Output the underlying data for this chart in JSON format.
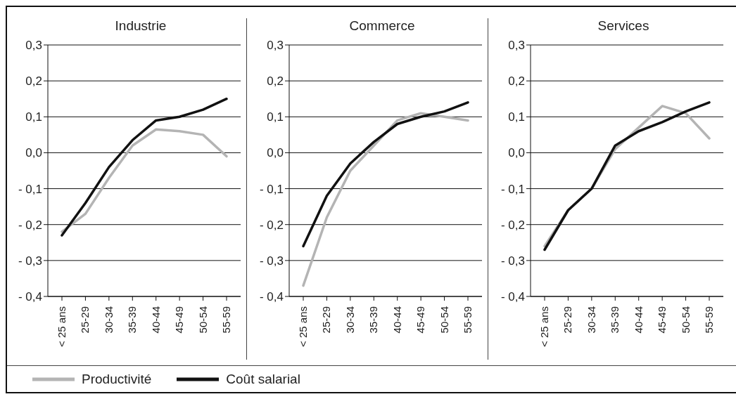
{
  "chart_data": [
    {
      "type": "line",
      "title": "Industrie",
      "categories": [
        "< 25 ans",
        "25-29",
        "30-34",
        "35-39",
        "40-44",
        "45-49",
        "50-54",
        "55-59"
      ],
      "ylim": [
        -0.4,
        0.3
      ],
      "yticks": [
        {
          "value": -0.4,
          "label": "- 0,4"
        },
        {
          "value": -0.3,
          "label": "- 0,3"
        },
        {
          "value": -0.2,
          "label": "- 0,2"
        },
        {
          "value": -0.1,
          "label": "- 0,1"
        },
        {
          "value": 0,
          "label": "0,0"
        },
        {
          "value": 0.1,
          "label": "0,1"
        },
        {
          "value": 0.2,
          "label": "0,2"
        },
        {
          "value": 0.3,
          "label": "0,3"
        }
      ],
      "grid": "y",
      "legend": "bottom",
      "series": [
        {
          "name": "Productivité",
          "color": "#b4b4b4",
          "values": [
            -0.22,
            -0.17,
            -0.07,
            0.02,
            0.065,
            0.06,
            0.05,
            -0.01
          ]
        },
        {
          "name": "Coût salarial",
          "color": "#111111",
          "values": [
            -0.23,
            -0.14,
            -0.04,
            0.035,
            0.09,
            0.1,
            0.12,
            0.15
          ]
        }
      ]
    },
    {
      "type": "line",
      "title": "Commerce",
      "categories": [
        "< 25 ans",
        "25-29",
        "30-34",
        "35-39",
        "40-44",
        "45-49",
        "50-54",
        "55-59"
      ],
      "ylim": [
        -0.4,
        0.3
      ],
      "yticks": [
        {
          "value": -0.4,
          "label": "- 0,4"
        },
        {
          "value": -0.3,
          "label": "- 0,3"
        },
        {
          "value": -0.2,
          "label": "- 0,2"
        },
        {
          "value": -0.1,
          "label": "- 0,1"
        },
        {
          "value": 0,
          "label": "0,0"
        },
        {
          "value": 0.1,
          "label": "0,1"
        },
        {
          "value": 0.2,
          "label": "0,2"
        },
        {
          "value": 0.3,
          "label": "0,3"
        }
      ],
      "grid": "y",
      "series": [
        {
          "color": "#b4b4b4",
          "values": [
            -0.37,
            -0.18,
            -0.05,
            0.02,
            0.09,
            0.11,
            0.1,
            0.09
          ]
        },
        {
          "color": "#111111",
          "values": [
            -0.26,
            -0.12,
            -0.03,
            0.03,
            0.08,
            0.1,
            0.115,
            0.14
          ]
        }
      ]
    },
    {
      "type": "line",
      "title": "Services",
      "categories": [
        "< 25 ans",
        "25-29",
        "30-34",
        "35-39",
        "40-44",
        "45-49",
        "50-54",
        "55-59"
      ],
      "ylim": [
        -0.4,
        0.3
      ],
      "yticks": [
        {
          "value": -0.4,
          "label": "- 0,4"
        },
        {
          "value": -0.3,
          "label": "- 0,3"
        },
        {
          "value": -0.2,
          "label": "- 0,2"
        },
        {
          "value": -0.1,
          "label": "- 0,1"
        },
        {
          "value": 0,
          "label": "0,0"
        },
        {
          "value": 0.1,
          "label": "0,1"
        },
        {
          "value": 0.2,
          "label": "0,2"
        },
        {
          "value": 0.3,
          "label": "0,3"
        }
      ],
      "grid": "y",
      "series": [
        {
          "color": "#b4b4b4",
          "values": [
            -0.26,
            -0.16,
            -0.1,
            0.01,
            0.07,
            0.13,
            0.11,
            0.04
          ]
        },
        {
          "color": "#111111",
          "values": [
            -0.27,
            -0.16,
            -0.1,
            0.02,
            0.06,
            0.085,
            0.115,
            0.14
          ]
        }
      ]
    }
  ]
}
